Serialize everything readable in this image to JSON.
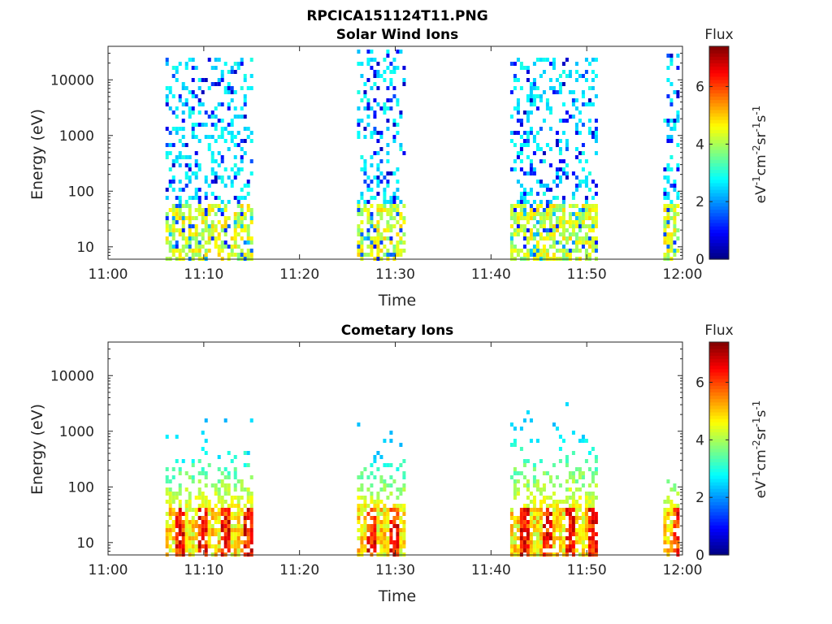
{
  "figure_title": "RPCICA151124T11.PNG",
  "colormap": "jet",
  "chart_data": [
    {
      "type": "heatmap",
      "title": "Solar Wind Ions",
      "xlabel": "Time",
      "ylabel": "Energy (eV)",
      "x_range": [
        "11:00",
        "12:00"
      ],
      "y_scale": "log",
      "y_range": [
        6,
        40000
      ],
      "x_ticks": [
        "11:00",
        "11:10",
        "11:20",
        "11:30",
        "11:40",
        "11:50",
        "12:00"
      ],
      "y_ticks": [
        "10",
        "100",
        "1000",
        "10000"
      ],
      "colorbar": {
        "label_top": "Flux",
        "unit_label": "eV-1cm-2sr-1s-1",
        "range": [
          0,
          7.4
        ],
        "ticks": [
          "0",
          "2",
          "4",
          "6"
        ]
      },
      "bursts": [
        {
          "start": "11:06",
          "end": "11:15",
          "low": [
            20,
            60
          ],
          "high": [
            150,
            25000
          ]
        },
        {
          "start": "11:26",
          "end": "11:31",
          "low": [
            20,
            60
          ],
          "high": [
            150,
            35000
          ]
        },
        {
          "start": "11:42",
          "end": "11:51",
          "low": [
            20,
            60
          ],
          "high": [
            150,
            25000
          ]
        },
        {
          "start": "11:58",
          "end": "12:00",
          "low": [
            20,
            60
          ],
          "high": [
            150,
            30000
          ]
        }
      ]
    },
    {
      "type": "heatmap",
      "title": "Cometary Ions",
      "xlabel": "Time",
      "ylabel": "Energy (eV)",
      "x_range": [
        "11:00",
        "12:00"
      ],
      "y_scale": "log",
      "y_range": [
        6,
        40000
      ],
      "x_ticks": [
        "11:00",
        "11:10",
        "11:20",
        "11:30",
        "11:40",
        "11:50",
        "12:00"
      ],
      "y_ticks": [
        "10",
        "100",
        "1000",
        "10000"
      ],
      "colorbar": {
        "label_top": "Flux",
        "unit_label": "eV-1cm-2sr-1s-1",
        "range": [
          0,
          7.4
        ],
        "ticks": [
          "0",
          "2",
          "4",
          "6"
        ]
      },
      "bursts": [
        {
          "start": "11:06",
          "end": "11:15",
          "core": [
            8,
            45
          ],
          "top": 700
        },
        {
          "start": "11:26",
          "end": "11:31",
          "core": [
            8,
            45
          ],
          "top": 550
        },
        {
          "start": "11:42",
          "end": "11:51",
          "core": [
            8,
            45
          ],
          "top": 1200
        },
        {
          "start": "11:58",
          "end": "12:00",
          "core": [
            8,
            45
          ],
          "top": 300
        }
      ]
    }
  ]
}
